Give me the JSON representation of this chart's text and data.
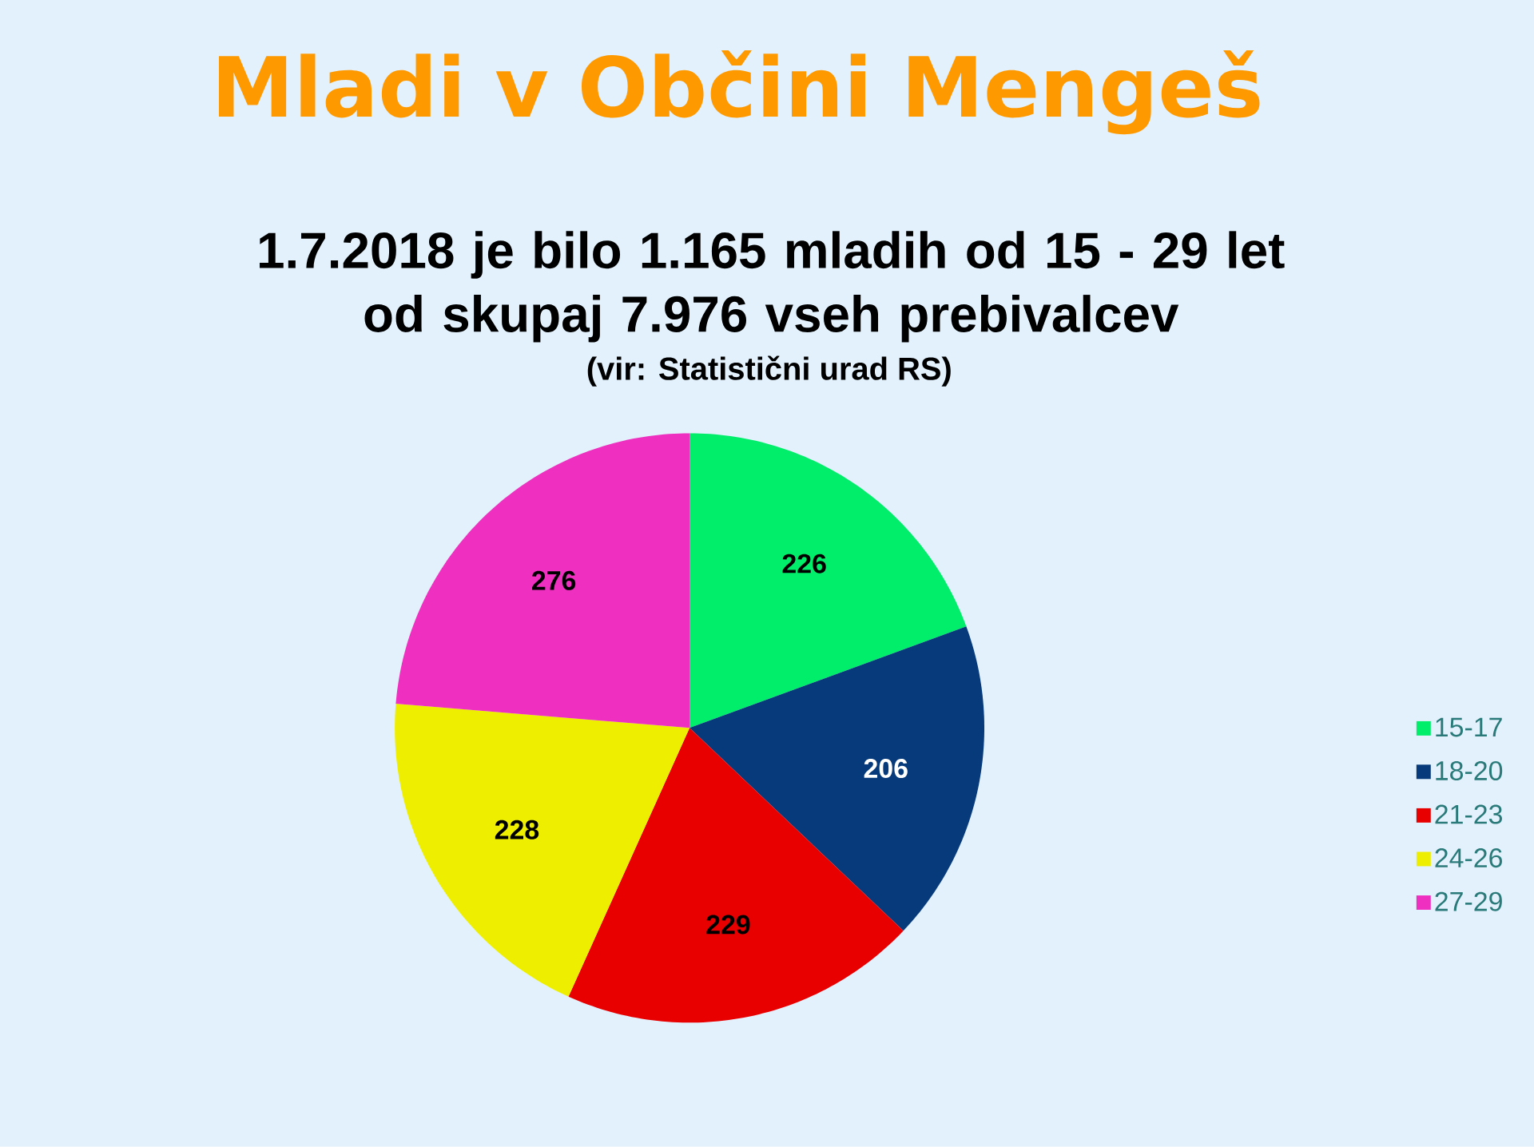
{
  "chart_data": {
    "type": "pie",
    "title": "Mladi v Občini Mengeš",
    "subtitle": "1.7.2018 je bilo 1.165 mladih od 15 - 29 let\nod skupaj 7.976 vseh prebivalcev",
    "annotations": [
      "(vir: Statistični urad RS)"
    ],
    "categories": [
      "15-17",
      "18-20",
      "21-23",
      "24-26",
      "27-29"
    ],
    "values": [
      226,
      206,
      229,
      228,
      276
    ],
    "colors": [
      "#00ee6a",
      "#063a7a",
      "#e80000",
      "#eeee00",
      "#ee2fbf"
    ],
    "data_labels": true,
    "legend": "right"
  }
}
